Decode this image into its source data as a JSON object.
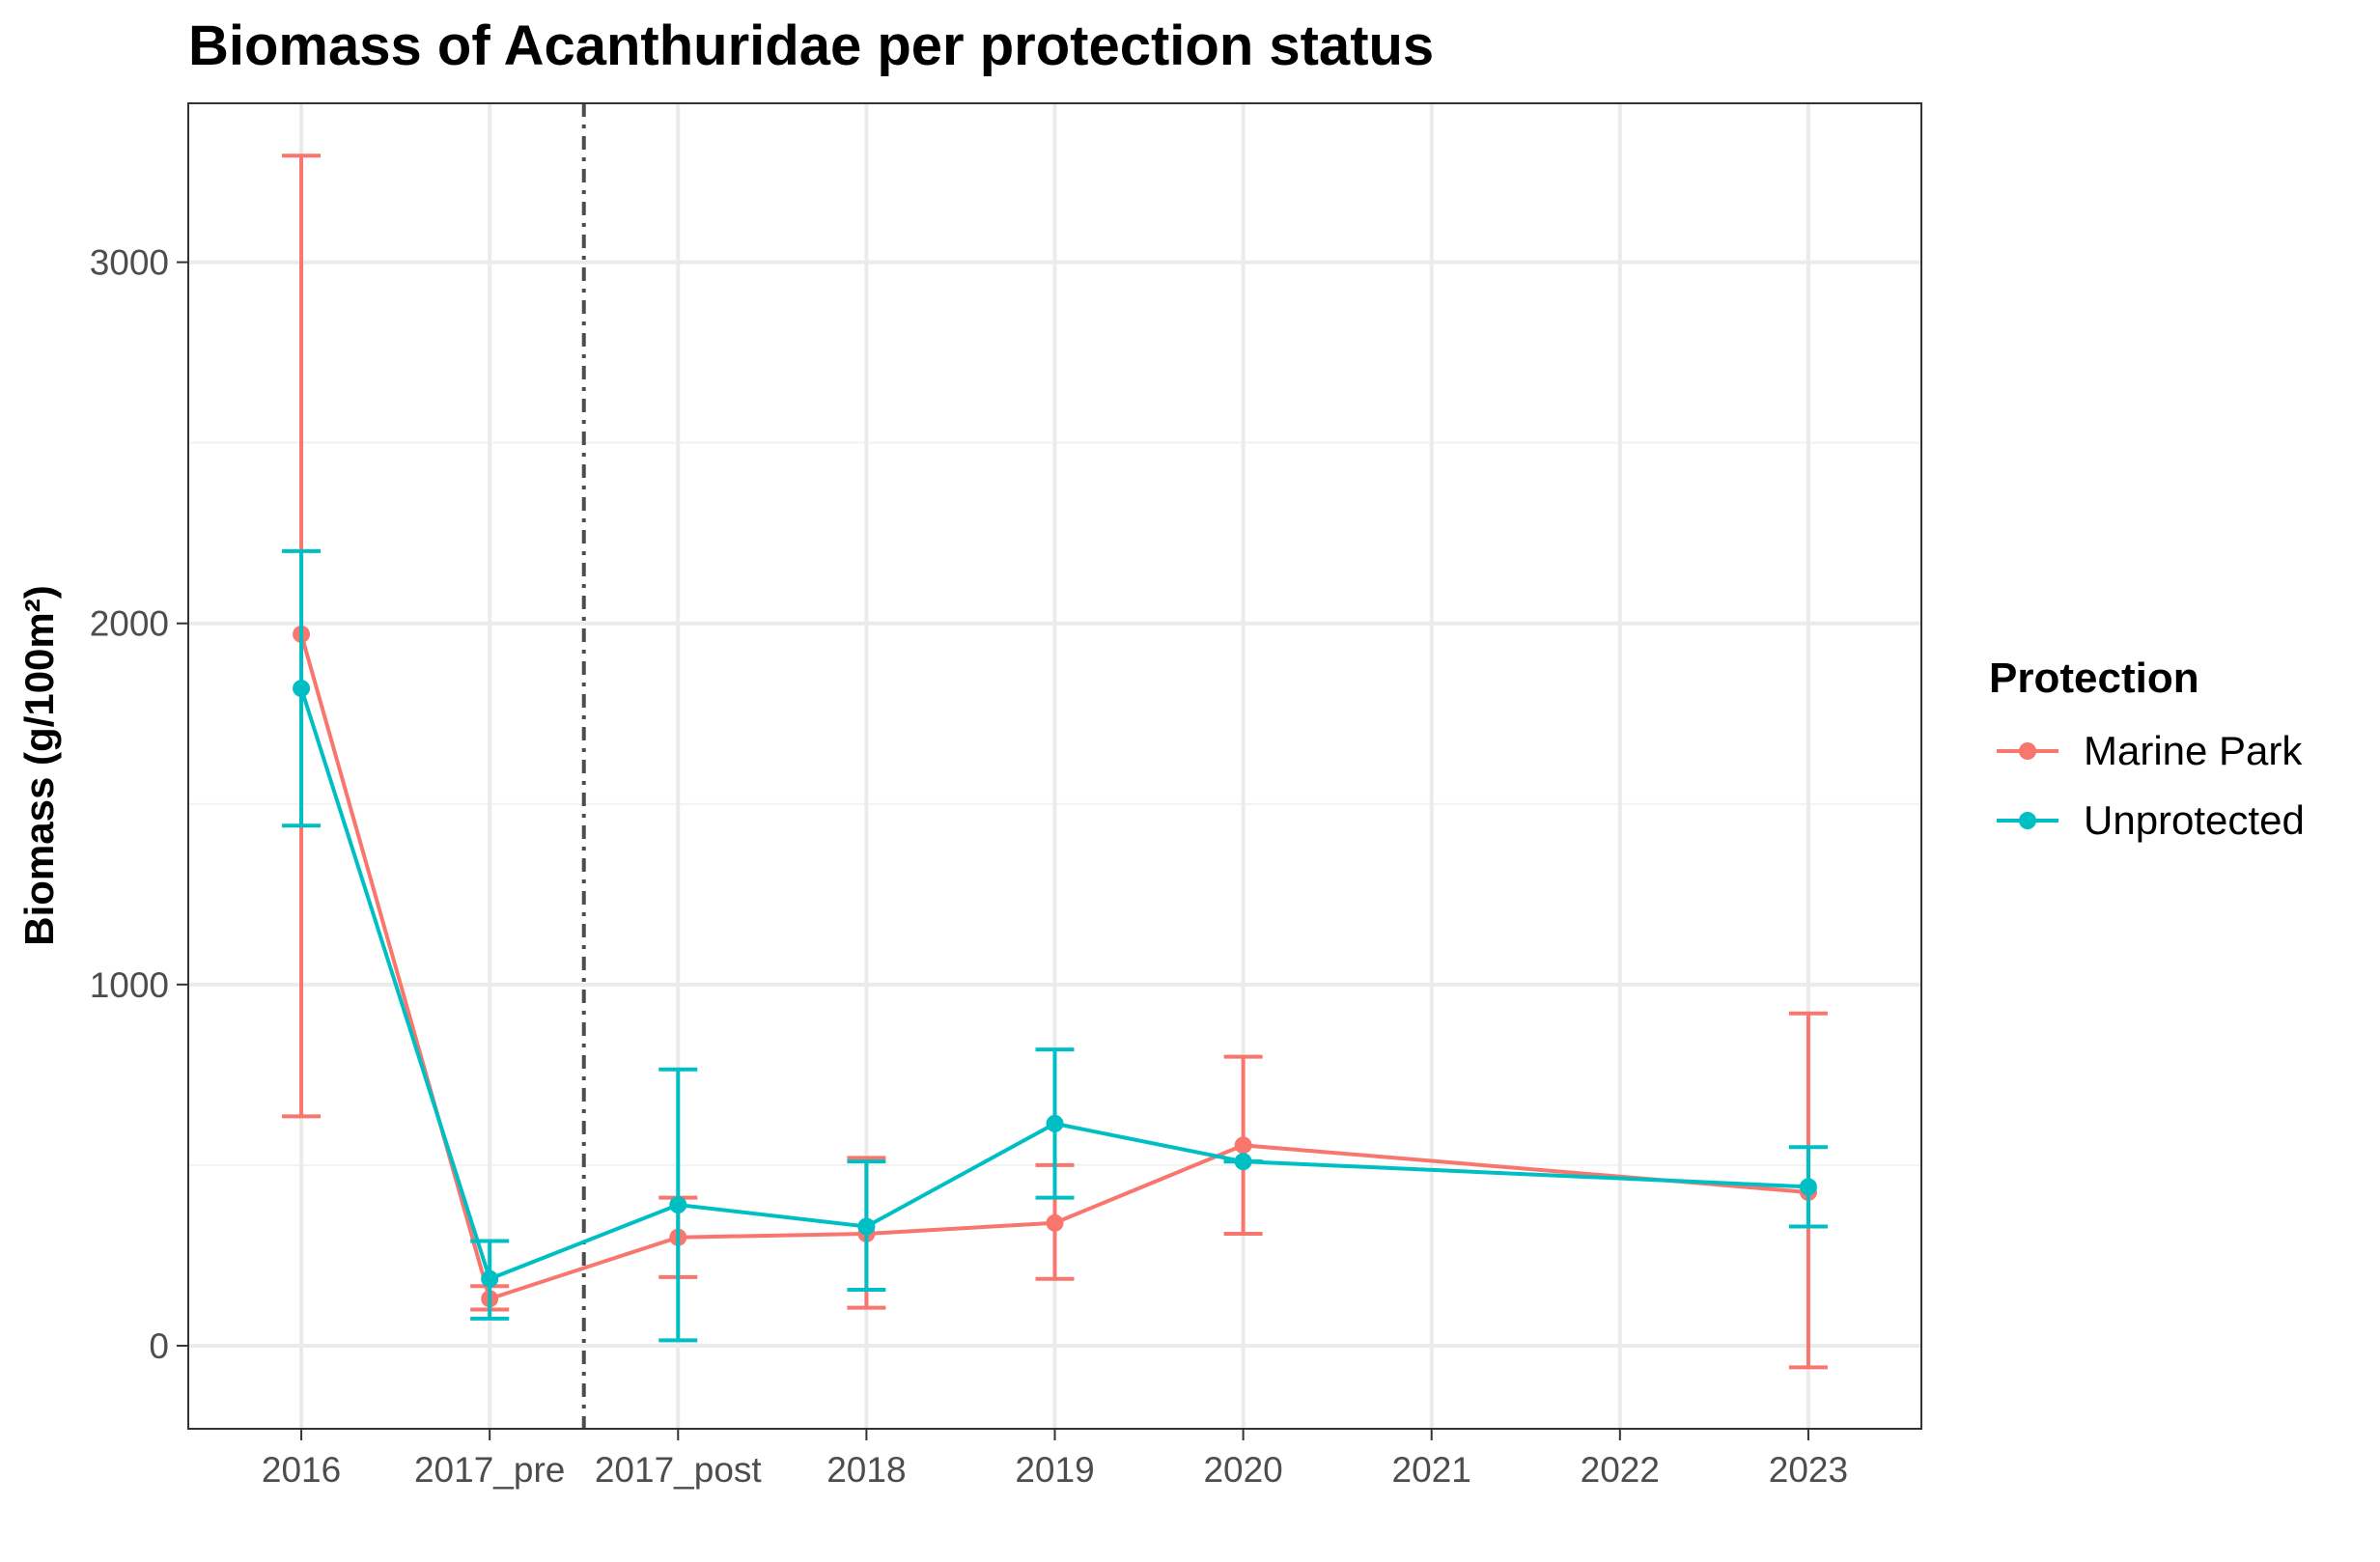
{
  "chart_data": {
    "type": "line",
    "title": "Biomass of Acanthuridae per protection status",
    "xlabel": "",
    "ylabel": "Biomass (g/100m²)",
    "categories": [
      "2016",
      "2017_pre",
      "2017_post",
      "2018",
      "2019",
      "2020",
      "2021",
      "2022",
      "2023"
    ],
    "ylim": [
      -230,
      3440
    ],
    "yticks": [
      0,
      1000,
      2000,
      3000
    ],
    "grid": true,
    "legend": {
      "title": "Protection",
      "position": "right"
    },
    "vline": {
      "category": "2017_pre",
      "offset": 0.5,
      "style": "dashdot",
      "color": "#4d4d4d"
    },
    "series": [
      {
        "name": "Marine Park",
        "color": "#F8766D",
        "x": [
          "2016",
          "2017_pre",
          "2017_post",
          "2018",
          "2019",
          "2020",
          "2023"
        ],
        "values": [
          1970,
          130,
          300,
          310,
          340,
          555,
          425
        ],
        "lower": [
          635,
          100,
          190,
          105,
          185,
          310,
          -60
        ],
        "upper": [
          3295,
          165,
          410,
          520,
          500,
          800,
          920
        ]
      },
      {
        "name": "Unprotected",
        "color": "#00BFC4",
        "x": [
          "2016",
          "2017_pre",
          "2017_post",
          "2018",
          "2019",
          "2020",
          "2023"
        ],
        "values": [
          1820,
          185,
          390,
          330,
          615,
          510,
          440
        ],
        "lower": [
          1440,
          75,
          15,
          155,
          410,
          510,
          330
        ],
        "upper": [
          2200,
          290,
          765,
          510,
          820,
          510,
          550
        ]
      }
    ]
  }
}
